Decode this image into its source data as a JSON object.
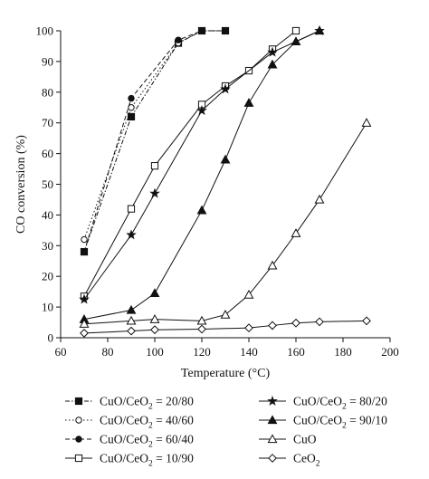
{
  "chart_data": {
    "type": "line",
    "xlabel_main": "Temperature (",
    "xlabel_unit": "°C)",
    "ylabel": "CO conversion (%)",
    "xlim": [
      60,
      200
    ],
    "ylim": [
      0,
      100
    ],
    "xticks": [
      "60",
      "80",
      "100",
      "120",
      "140",
      "160",
      "180",
      "200"
    ],
    "yticks": [
      "0",
      "10",
      "20",
      "30",
      "40",
      "50",
      "60",
      "70",
      "80",
      "90",
      "100"
    ],
    "grid": false,
    "legend_position": "bottom",
    "series": [
      {
        "name_prefix": "CuO/CeO",
        "name_sub": "2",
        "name_suffix": " = 20/80",
        "marker": "square-filled",
        "dash": "dash-dot",
        "x": [
          70,
          90,
          110,
          120,
          130
        ],
        "y": [
          28,
          72,
          96,
          100,
          100
        ]
      },
      {
        "name_prefix": "CuO/CeO",
        "name_sub": "2",
        "name_suffix": " = 40/60",
        "marker": "circle-open",
        "dash": "dot",
        "x": [
          70,
          90,
          110,
          120,
          130
        ],
        "y": [
          32,
          75,
          96,
          100,
          100
        ]
      },
      {
        "name_prefix": "CuO/CeO",
        "name_sub": "2",
        "name_suffix": " = 60/40",
        "marker": "circle-filled",
        "dash": "dash",
        "x": [
          70,
          90,
          110,
          120,
          130
        ],
        "y": [
          28,
          78,
          97,
          100,
          100
        ]
      },
      {
        "name_prefix": "CuO/CeO",
        "name_sub": "2",
        "name_suffix": " = 10/90",
        "marker": "square-open",
        "dash": "solid",
        "x": [
          70,
          90,
          100,
          120,
          130,
          140,
          150,
          160
        ],
        "y": [
          13.5,
          42,
          56,
          76,
          82,
          87,
          94,
          100
        ]
      },
      {
        "name_prefix": "CuO/CeO",
        "name_sub": "2",
        "name_suffix": " = 80/20",
        "marker": "star-filled",
        "dash": "solid",
        "x": [
          70,
          90,
          100,
          120,
          130,
          150,
          170
        ],
        "y": [
          12.5,
          33.5,
          47,
          74,
          81,
          93,
          100
        ]
      },
      {
        "name_prefix": "CuO/CeO",
        "name_sub": "2",
        "name_suffix": " = 90/10",
        "marker": "triangle-filled",
        "dash": "solid",
        "x": [
          70,
          90,
          100,
          120,
          130,
          140,
          150,
          160,
          170
        ],
        "y": [
          6,
          9,
          14.5,
          41.5,
          58,
          76.5,
          89,
          96.5,
          100
        ]
      },
      {
        "name_prefix": "CuO",
        "name_sub": "",
        "name_suffix": "",
        "marker": "triangle-open",
        "dash": "solid",
        "x": [
          70,
          90,
          100,
          120,
          130,
          140,
          150,
          160,
          170,
          190
        ],
        "y": [
          4.5,
          5.5,
          6,
          5.5,
          7.5,
          14,
          23.5,
          34,
          45,
          70
        ]
      },
      {
        "name_prefix": "CeO",
        "name_sub": "2",
        "name_suffix": "",
        "marker": "diamond-open",
        "dash": "solid",
        "x": [
          70,
          90,
          100,
          120,
          140,
          150,
          160,
          170,
          190
        ],
        "y": [
          1.5,
          2.2,
          2.6,
          2.8,
          3.2,
          4,
          4.8,
          5.2,
          5.5
        ]
      }
    ]
  }
}
